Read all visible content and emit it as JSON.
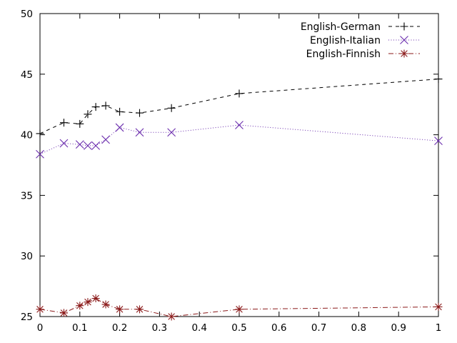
{
  "chart_data": {
    "type": "line",
    "title": "",
    "xlabel": "",
    "ylabel": "",
    "xlim": [
      0,
      1
    ],
    "ylim": [
      25,
      50
    ],
    "grid": false,
    "legend_position": "top-right",
    "xticks": [
      "0",
      "0.1",
      "0.2",
      "0.3",
      "0.4",
      "0.5",
      "0.6",
      "0.7",
      "0.8",
      "0.9",
      "1"
    ],
    "xtick_values": [
      0,
      0.1,
      0.2,
      0.3,
      0.4,
      0.5,
      0.6,
      0.7,
      0.8,
      0.9,
      1.0
    ],
    "yticks": [
      "25",
      "30",
      "35",
      "40",
      "45",
      "50"
    ],
    "ytick_values": [
      25,
      30,
      35,
      40,
      45,
      50
    ],
    "series": [
      {
        "name": "English-German",
        "color": "#000000",
        "line_style": "dashed",
        "marker": "plus",
        "x": [
          0,
          0.06,
          0.1,
          0.12,
          0.14,
          0.165,
          0.2,
          0.25,
          0.33,
          0.5,
          1.0
        ],
        "y": [
          40.1,
          41.0,
          40.9,
          41.7,
          42.3,
          42.4,
          41.9,
          41.8,
          42.2,
          43.4,
          44.6
        ]
      },
      {
        "name": "English-Italian",
        "color": "#6a2cad",
        "line_style": "dotted",
        "marker": "x",
        "x": [
          0,
          0.06,
          0.1,
          0.12,
          0.14,
          0.165,
          0.2,
          0.25,
          0.33,
          0.5,
          1.0
        ],
        "y": [
          38.4,
          39.3,
          39.2,
          39.1,
          39.1,
          39.6,
          40.6,
          40.2,
          40.2,
          40.8,
          39.5
        ]
      },
      {
        "name": "English-Finnish",
        "color": "#8b1a1a",
        "line_style": "dash-dot",
        "marker": "star",
        "x": [
          0,
          0.06,
          0.1,
          0.12,
          0.14,
          0.165,
          0.2,
          0.25,
          0.33,
          0.5,
          1.0
        ],
        "y": [
          25.6,
          25.3,
          25.9,
          26.2,
          26.5,
          26.0,
          25.6,
          25.6,
          25.0,
          25.6,
          25.8
        ]
      }
    ]
  }
}
